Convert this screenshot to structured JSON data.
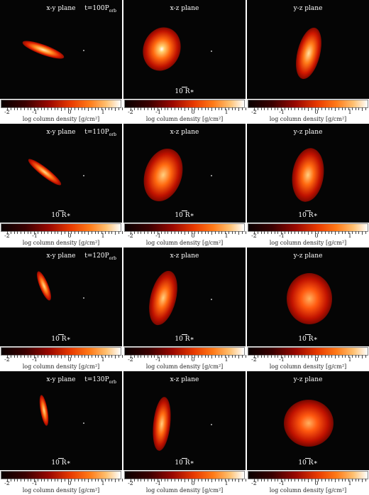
{
  "scale_label": "10 R∗",
  "colorbar": {
    "label": "log column density [g/cm²]",
    "ticks": [
      "-2",
      "-1",
      "0",
      "1"
    ]
  },
  "rows": [
    {
      "time": "t=100P",
      "time_sub": "orb",
      "panels": [
        {
          "plane": "x-y plane"
        },
        {
          "plane": "x-z plane"
        },
        {
          "plane": "y-z plane"
        }
      ]
    },
    {
      "time": "t=110P",
      "time_sub": "orb",
      "panels": [
        {
          "plane": "x-y plane"
        },
        {
          "plane": "x-z plane"
        },
        {
          "plane": "y-z plane"
        }
      ]
    },
    {
      "time": "t=120P",
      "time_sub": "orb",
      "panels": [
        {
          "plane": "x-y plane"
        },
        {
          "plane": "x-z plane"
        },
        {
          "plane": "y-z plane"
        }
      ]
    },
    {
      "time": "t=130P",
      "time_sub": "orb",
      "panels": [
        {
          "plane": "x-y plane"
        },
        {
          "plane": "x-z plane"
        },
        {
          "plane": "y-z plane"
        }
      ]
    }
  ]
}
